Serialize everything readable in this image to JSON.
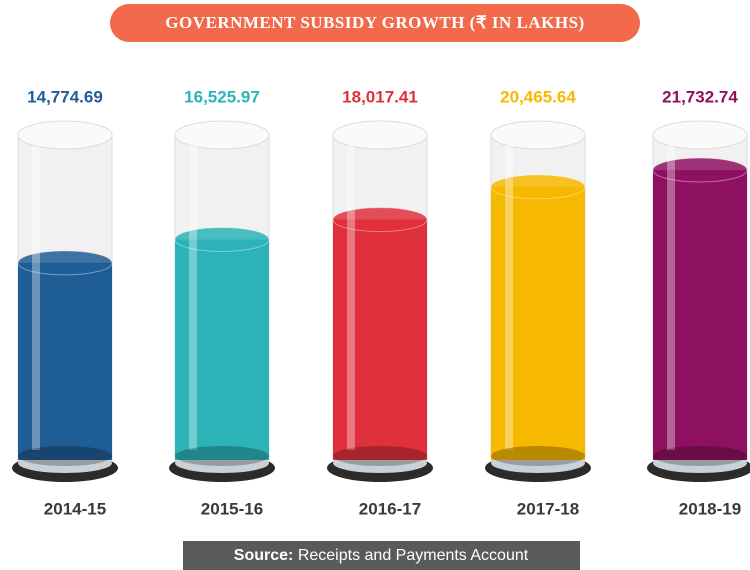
{
  "chart_data": {
    "type": "bar",
    "title": "GOVERNMENT SUBSIDY GROWTH (₹ IN LAKHS)",
    "categories": [
      "2014-15",
      "2015-16",
      "2016-17",
      "2017-18",
      "2018-19"
    ],
    "values": [
      14774.69,
      16525.97,
      18017.41,
      20465.64,
      21732.74
    ],
    "value_labels": [
      "14,774.69",
      "16,525.97",
      "18,017.41",
      "20,465.64",
      "21,732.74"
    ],
    "colors": [
      "#1f5d96",
      "#2bb3b8",
      "#e0303c",
      "#f7b800",
      "#8e1060"
    ],
    "source_label": "Source:",
    "source_text": "Receipts and Payments Account"
  }
}
